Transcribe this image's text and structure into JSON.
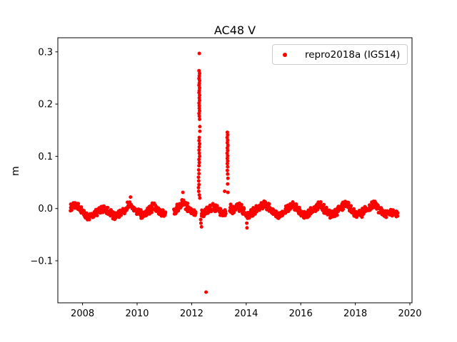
{
  "figure": {
    "background": "#ffffff",
    "frame_color": "#000000"
  },
  "chart_data": {
    "type": "scatter",
    "title": "AC48 V",
    "xlabel": "",
    "ylabel": "m",
    "xlim": [
      2007.1,
      2020.1
    ],
    "ylim": [
      -0.18,
      0.327
    ],
    "grid": false,
    "xticks": [
      2008,
      2010,
      2012,
      2014,
      2016,
      2018,
      2020
    ],
    "xtick_labels": [
      "2008",
      "2010",
      "2012",
      "2014",
      "2016",
      "2018",
      "2020"
    ],
    "yticks": [
      -0.1,
      0.0,
      0.1,
      0.2,
      0.3
    ],
    "ytick_labels": [
      "−0.1",
      "0.0",
      "0.1",
      "0.2",
      "0.3"
    ],
    "legend": {
      "position": "upper right",
      "entries": [
        {
          "label": "repro2018a (IGS14)",
          "color": "#ff0000",
          "marker": "dot"
        }
      ]
    },
    "series": [
      {
        "name": "repro2018a (IGS14)",
        "color": "#ff0000",
        "marker_radius_px": 2.5,
        "points_per_anchor": 9,
        "anchor_halfwidth_yr": 0.055,
        "baseline_scatter_halfwidth_m": 0.0065,
        "baseline_monthly_mean": [
          [
            2007.6,
            0.002
          ],
          [
            2007.7,
            0.006
          ],
          [
            2007.8,
            0.003
          ],
          [
            2007.9,
            -0.002
          ],
          [
            2008.0,
            -0.008
          ],
          [
            2008.1,
            -0.014
          ],
          [
            2008.2,
            -0.019
          ],
          [
            2008.3,
            -0.016
          ],
          [
            2008.4,
            -0.011
          ],
          [
            2008.5,
            -0.007
          ],
          [
            2008.6,
            -0.005
          ],
          [
            2008.7,
            -0.002
          ],
          [
            2008.8,
            -0.001
          ],
          [
            2008.9,
            -0.004
          ],
          [
            2009.0,
            -0.009
          ],
          [
            2009.1,
            -0.013
          ],
          [
            2009.2,
            -0.015
          ],
          [
            2009.3,
            -0.011
          ],
          [
            2009.4,
            -0.007
          ],
          [
            2009.5,
            -0.004
          ],
          [
            2009.6,
            -0.001
          ],
          [
            2009.7,
            0.008
          ],
          [
            2009.8,
            0.004
          ],
          [
            2009.9,
            -0.001
          ],
          [
            2010.0,
            -0.005
          ],
          [
            2010.1,
            -0.009
          ],
          [
            2010.2,
            -0.012
          ],
          [
            2010.3,
            -0.009
          ],
          [
            2010.4,
            -0.005
          ],
          [
            2010.5,
            -0.001
          ],
          [
            2010.6,
            0.004
          ],
          [
            2010.7,
            0.0
          ],
          [
            2010.8,
            -0.005
          ],
          [
            2010.9,
            -0.009
          ],
          [
            2011.0,
            -0.008
          ],
          [
            2011.4,
            -0.004
          ],
          [
            2011.5,
            0.002
          ],
          [
            2011.6,
            0.006
          ],
          [
            2011.7,
            0.011
          ],
          [
            2011.8,
            0.005
          ],
          [
            2011.9,
            -0.001
          ],
          [
            2012.0,
            -0.005
          ],
          [
            2012.1,
            -0.008
          ],
          [
            2012.4,
            -0.009
          ],
          [
            2012.5,
            -0.008
          ],
          [
            2012.6,
            -0.004
          ],
          [
            2012.7,
            0.0
          ],
          [
            2012.8,
            0.003
          ],
          [
            2012.9,
            0.001
          ],
          [
            2013.0,
            -0.004
          ],
          [
            2013.1,
            -0.008
          ],
          [
            2013.2,
            -0.007
          ],
          [
            2013.45,
            -0.004
          ],
          [
            2013.5,
            -0.002
          ],
          [
            2013.6,
            0.001
          ],
          [
            2013.7,
            0.004
          ],
          [
            2013.8,
            0.001
          ],
          [
            2013.9,
            -0.005
          ],
          [
            2014.0,
            -0.012
          ],
          [
            2014.1,
            -0.014
          ],
          [
            2014.2,
            -0.009
          ],
          [
            2014.3,
            -0.005
          ],
          [
            2014.4,
            -0.001
          ],
          [
            2014.5,
            0.002
          ],
          [
            2014.6,
            0.006
          ],
          [
            2014.7,
            0.008
          ],
          [
            2014.8,
            0.004
          ],
          [
            2014.9,
            -0.002
          ],
          [
            2015.0,
            -0.007
          ],
          [
            2015.1,
            -0.011
          ],
          [
            2015.2,
            -0.013
          ],
          [
            2015.3,
            -0.009
          ],
          [
            2015.4,
            -0.004
          ],
          [
            2015.5,
            0.0
          ],
          [
            2015.6,
            0.004
          ],
          [
            2015.7,
            0.007
          ],
          [
            2015.8,
            0.003
          ],
          [
            2015.9,
            -0.003
          ],
          [
            2016.0,
            -0.008
          ],
          [
            2016.1,
            -0.012
          ],
          [
            2016.2,
            -0.013
          ],
          [
            2016.3,
            -0.009
          ],
          [
            2016.4,
            -0.005
          ],
          [
            2016.5,
            -0.001
          ],
          [
            2016.6,
            0.003
          ],
          [
            2016.7,
            0.006
          ],
          [
            2016.8,
            0.002
          ],
          [
            2016.9,
            -0.004
          ],
          [
            2017.0,
            -0.009
          ],
          [
            2017.1,
            -0.012
          ],
          [
            2017.2,
            -0.011
          ],
          [
            2017.3,
            -0.007
          ],
          [
            2017.4,
            -0.002
          ],
          [
            2017.5,
            0.003
          ],
          [
            2017.6,
            0.008
          ],
          [
            2017.7,
            0.006
          ],
          [
            2017.8,
            0.001
          ],
          [
            2017.9,
            -0.005
          ],
          [
            2018.0,
            -0.01
          ],
          [
            2018.1,
            -0.012
          ],
          [
            2018.2,
            -0.01
          ],
          [
            2018.3,
            -0.006
          ],
          [
            2018.4,
            -0.002
          ],
          [
            2018.5,
            0.002
          ],
          [
            2018.6,
            0.006
          ],
          [
            2018.7,
            0.008
          ],
          [
            2018.8,
            0.003
          ],
          [
            2018.9,
            -0.003
          ],
          [
            2019.0,
            -0.008
          ],
          [
            2019.1,
            -0.011
          ],
          [
            2019.2,
            -0.009
          ],
          [
            2019.3,
            -0.008
          ],
          [
            2019.4,
            -0.009
          ],
          [
            2019.5,
            -0.01
          ]
        ],
        "spike_2012_3": [
          [
            2012.28,
            0.297
          ],
          [
            2012.27,
            0.264
          ],
          [
            2012.29,
            0.259
          ],
          [
            2012.28,
            0.254
          ],
          [
            2012.27,
            0.249
          ],
          [
            2012.29,
            0.245
          ],
          [
            2012.28,
            0.24
          ],
          [
            2012.27,
            0.236
          ],
          [
            2012.29,
            0.231
          ],
          [
            2012.28,
            0.226
          ],
          [
            2012.27,
            0.222
          ],
          [
            2012.29,
            0.217
          ],
          [
            2012.28,
            0.212
          ],
          [
            2012.29,
            0.207
          ],
          [
            2012.27,
            0.202
          ],
          [
            2012.28,
            0.197
          ],
          [
            2012.28,
            0.192
          ],
          [
            2012.29,
            0.187
          ],
          [
            2012.27,
            0.182
          ],
          [
            2012.28,
            0.177
          ],
          [
            2012.29,
            0.171
          ],
          [
            2012.3,
            0.157
          ],
          [
            2012.3,
            0.148
          ],
          [
            2012.28,
            0.136
          ],
          [
            2012.27,
            0.13
          ],
          [
            2012.29,
            0.124
          ],
          [
            2012.28,
            0.118
          ],
          [
            2012.27,
            0.112
          ],
          [
            2012.28,
            0.106
          ],
          [
            2012.29,
            0.1
          ],
          [
            2012.27,
            0.094
          ],
          [
            2012.28,
            0.088
          ],
          [
            2012.27,
            0.082
          ],
          [
            2012.26,
            0.074
          ],
          [
            2012.27,
            0.067
          ],
          [
            2012.25,
            0.06
          ],
          [
            2012.26,
            0.053
          ],
          [
            2012.27,
            0.046
          ],
          [
            2012.25,
            0.04
          ],
          [
            2012.26,
            0.033
          ],
          [
            2012.28,
            0.026
          ],
          [
            2012.3,
            0.02
          ]
        ],
        "spike_2013_3": [
          [
            2013.31,
            0.146
          ],
          [
            2013.32,
            0.141
          ],
          [
            2013.3,
            0.136
          ],
          [
            2013.32,
            0.131
          ],
          [
            2013.31,
            0.126
          ],
          [
            2013.33,
            0.121
          ],
          [
            2013.31,
            0.116
          ],
          [
            2013.32,
            0.111
          ],
          [
            2013.3,
            0.106
          ],
          [
            2013.32,
            0.101
          ],
          [
            2013.31,
            0.096
          ],
          [
            2013.32,
            0.091
          ],
          [
            2013.31,
            0.086
          ],
          [
            2013.32,
            0.08
          ],
          [
            2013.31,
            0.073
          ],
          [
            2013.32,
            0.066
          ],
          [
            2013.33,
            0.058
          ],
          [
            2013.32,
            0.047
          ],
          [
            2013.33,
            0.031
          ]
        ],
        "low_outliers": [
          [
            2012.53,
            -0.16
          ],
          [
            2012.33,
            -0.021
          ],
          [
            2012.34,
            -0.028
          ],
          [
            2012.36,
            -0.035
          ],
          [
            2014.02,
            -0.028
          ],
          [
            2014.03,
            -0.037
          ]
        ],
        "high_outliers": [
          [
            2009.76,
            0.022
          ],
          [
            2011.68,
            0.031
          ],
          [
            2013.21,
            0.033
          ],
          [
            2013.43,
            0.008
          ]
        ]
      }
    ]
  }
}
